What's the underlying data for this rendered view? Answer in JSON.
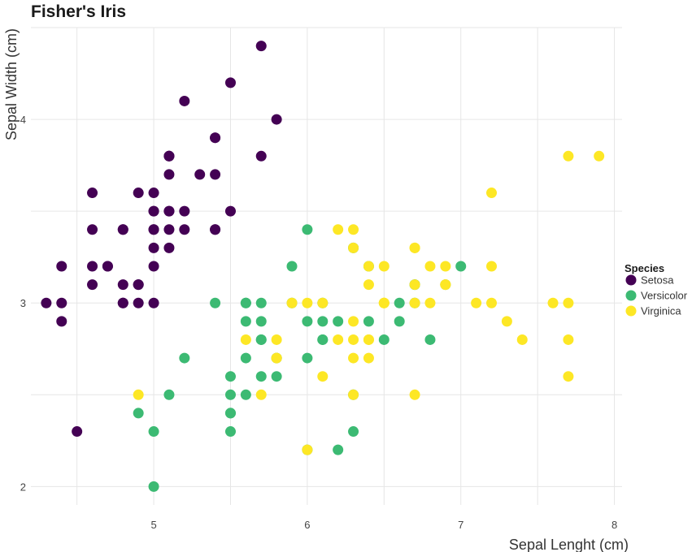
{
  "chart_data": {
    "type": "scatter",
    "title": "Fisher's Iris",
    "xlabel": "Sepal Lenght (cm)",
    "ylabel": "Sepal Width (cm)",
    "xlim": [
      4.2,
      8.05
    ],
    "ylim": [
      1.9,
      4.5
    ],
    "x_ticks": [
      5,
      6,
      7,
      8
    ],
    "y_ticks": [
      2,
      3,
      4
    ],
    "grid": true,
    "legend": {
      "title": "Species",
      "position": "right"
    },
    "series": [
      {
        "name": "Setosa",
        "color": "#440154",
        "points": [
          [
            5.1,
            3.5
          ],
          [
            4.9,
            3.0
          ],
          [
            4.7,
            3.2
          ],
          [
            4.6,
            3.1
          ],
          [
            5.0,
            3.6
          ],
          [
            5.4,
            3.9
          ],
          [
            4.6,
            3.4
          ],
          [
            5.0,
            3.4
          ],
          [
            4.4,
            2.9
          ],
          [
            4.9,
            3.1
          ],
          [
            5.4,
            3.7
          ],
          [
            4.8,
            3.4
          ],
          [
            4.8,
            3.0
          ],
          [
            4.3,
            3.0
          ],
          [
            5.8,
            4.0
          ],
          [
            5.7,
            4.4
          ],
          [
            5.4,
            3.9
          ],
          [
            5.1,
            3.5
          ],
          [
            5.7,
            3.8
          ],
          [
            5.1,
            3.8
          ],
          [
            5.4,
            3.4
          ],
          [
            5.1,
            3.7
          ],
          [
            4.6,
            3.6
          ],
          [
            5.1,
            3.3
          ],
          [
            4.8,
            3.4
          ],
          [
            5.0,
            3.0
          ],
          [
            5.0,
            3.4
          ],
          [
            5.2,
            3.5
          ],
          [
            5.2,
            3.4
          ],
          [
            4.7,
            3.2
          ],
          [
            4.8,
            3.1
          ],
          [
            5.4,
            3.4
          ],
          [
            5.2,
            4.1
          ],
          [
            5.5,
            4.2
          ],
          [
            4.9,
            3.1
          ],
          [
            5.0,
            3.2
          ],
          [
            5.5,
            3.5
          ],
          [
            4.9,
            3.6
          ],
          [
            4.4,
            3.0
          ],
          [
            5.1,
            3.4
          ],
          [
            5.0,
            3.5
          ],
          [
            4.5,
            2.3
          ],
          [
            4.4,
            3.2
          ],
          [
            5.0,
            3.5
          ],
          [
            5.1,
            3.8
          ],
          [
            4.8,
            3.0
          ],
          [
            5.1,
            3.8
          ],
          [
            4.6,
            3.2
          ],
          [
            5.3,
            3.7
          ],
          [
            5.0,
            3.3
          ]
        ]
      },
      {
        "name": "Versicolor",
        "color": "#3cba73",
        "points": [
          [
            7.0,
            3.2
          ],
          [
            6.4,
            3.2
          ],
          [
            6.9,
            3.1
          ],
          [
            5.5,
            2.3
          ],
          [
            6.5,
            2.8
          ],
          [
            5.7,
            2.8
          ],
          [
            6.3,
            3.3
          ],
          [
            4.9,
            2.4
          ],
          [
            6.6,
            2.9
          ],
          [
            5.2,
            2.7
          ],
          [
            5.0,
            2.0
          ],
          [
            5.9,
            3.0
          ],
          [
            6.0,
            2.2
          ],
          [
            6.1,
            2.9
          ],
          [
            5.6,
            2.9
          ],
          [
            6.7,
            3.1
          ],
          [
            5.6,
            3.0
          ],
          [
            5.8,
            2.7
          ],
          [
            6.2,
            2.2
          ],
          [
            5.6,
            2.5
          ],
          [
            5.9,
            3.2
          ],
          [
            6.1,
            2.8
          ],
          [
            6.3,
            2.5
          ],
          [
            6.1,
            2.8
          ],
          [
            6.4,
            2.9
          ],
          [
            6.6,
            3.0
          ],
          [
            6.8,
            2.8
          ],
          [
            6.7,
            3.0
          ],
          [
            6.0,
            2.9
          ],
          [
            5.7,
            2.6
          ],
          [
            5.5,
            2.4
          ],
          [
            5.5,
            2.4
          ],
          [
            5.8,
            2.7
          ],
          [
            6.0,
            2.7
          ],
          [
            5.4,
            3.0
          ],
          [
            6.0,
            3.4
          ],
          [
            6.7,
            3.1
          ],
          [
            6.3,
            2.3
          ],
          [
            5.6,
            3.0
          ],
          [
            5.5,
            2.5
          ],
          [
            5.5,
            2.6
          ],
          [
            6.1,
            3.0
          ],
          [
            5.8,
            2.6
          ],
          [
            5.0,
            2.3
          ],
          [
            5.6,
            2.7
          ],
          [
            5.7,
            3.0
          ],
          [
            5.7,
            2.9
          ],
          [
            6.2,
            2.9
          ],
          [
            5.1,
            2.5
          ],
          [
            5.7,
            2.8
          ]
        ]
      },
      {
        "name": "Virginica",
        "color": "#fde725",
        "points": [
          [
            6.3,
            3.3
          ],
          [
            5.8,
            2.7
          ],
          [
            7.1,
            3.0
          ],
          [
            6.3,
            2.9
          ],
          [
            6.5,
            3.0
          ],
          [
            7.6,
            3.0
          ],
          [
            4.9,
            2.5
          ],
          [
            7.3,
            2.9
          ],
          [
            6.7,
            2.5
          ],
          [
            7.2,
            3.6
          ],
          [
            6.5,
            3.2
          ],
          [
            6.4,
            2.7
          ],
          [
            6.8,
            3.0
          ],
          [
            5.7,
            2.5
          ],
          [
            5.8,
            2.8
          ],
          [
            6.4,
            3.2
          ],
          [
            6.5,
            3.0
          ],
          [
            7.7,
            3.8
          ],
          [
            7.7,
            2.6
          ],
          [
            6.0,
            2.2
          ],
          [
            6.9,
            3.2
          ],
          [
            5.6,
            2.8
          ],
          [
            7.7,
            2.8
          ],
          [
            6.3,
            2.7
          ],
          [
            6.7,
            3.3
          ],
          [
            7.2,
            3.2
          ],
          [
            6.2,
            2.8
          ],
          [
            6.1,
            3.0
          ],
          [
            6.4,
            2.8
          ],
          [
            7.2,
            3.0
          ],
          [
            7.4,
            2.8
          ],
          [
            7.9,
            3.8
          ],
          [
            6.4,
            2.8
          ],
          [
            6.3,
            2.8
          ],
          [
            6.1,
            2.6
          ],
          [
            7.7,
            3.0
          ],
          [
            6.3,
            3.4
          ],
          [
            6.4,
            3.1
          ],
          [
            6.0,
            3.0
          ],
          [
            6.9,
            3.1
          ],
          [
            6.7,
            3.1
          ],
          [
            6.9,
            3.1
          ],
          [
            5.8,
            2.7
          ],
          [
            6.8,
            3.2
          ],
          [
            6.7,
            3.3
          ],
          [
            6.7,
            3.0
          ],
          [
            6.3,
            2.5
          ],
          [
            6.5,
            3.0
          ],
          [
            6.2,
            3.4
          ],
          [
            5.9,
            3.0
          ]
        ]
      }
    ]
  }
}
